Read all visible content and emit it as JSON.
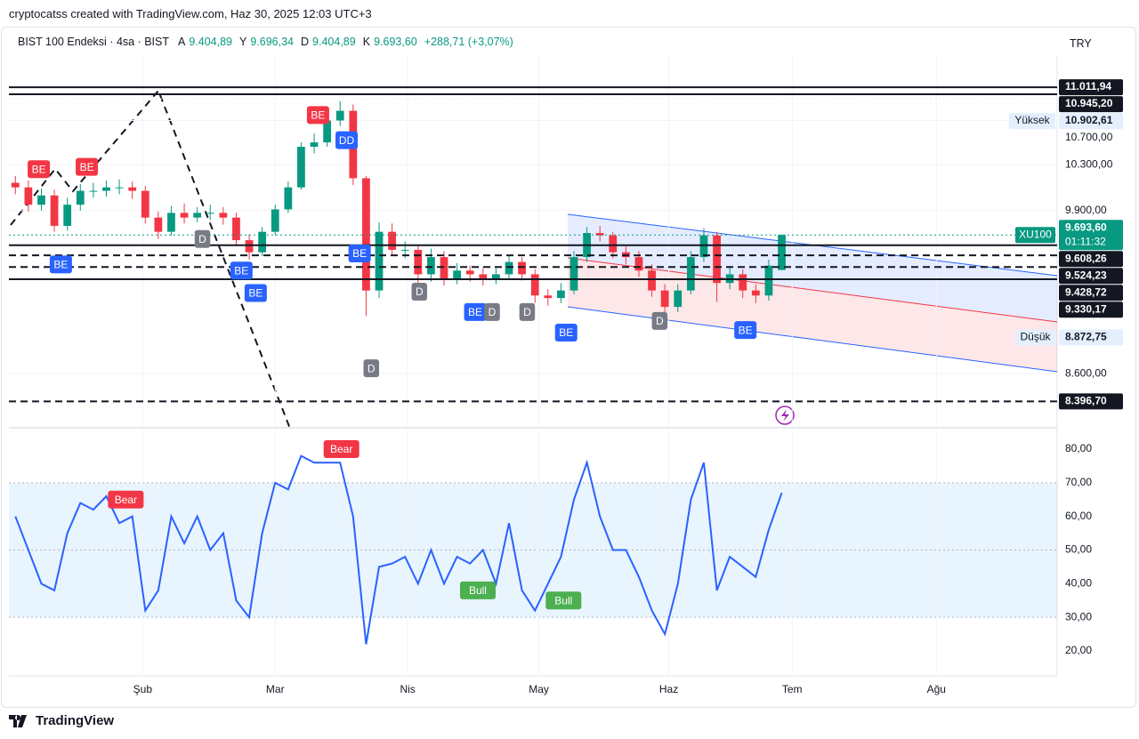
{
  "header": {
    "caption": "cryptocatss created with TradingView.com, Haz 30, 2025 12:03 UTC+3"
  },
  "legend": {
    "symbol": "BIST 100 Endeksi · 4sa · BIST",
    "ohlc": [
      {
        "key": "A",
        "value": "9.404,89"
      },
      {
        "key": "Y",
        "value": "9.696,34"
      },
      {
        "key": "D",
        "value": "9.404,89"
      },
      {
        "key": "K",
        "value": "9.693,60"
      }
    ],
    "change": "+288,71 (+3,07%)",
    "currency": "TRY"
  },
  "chart_data": [
    {
      "type": "candlestick",
      "log_scale": true,
      "grid": true,
      "xlim": [
        0,
        80.7
      ],
      "ylim": [
        8214,
        11321
      ],
      "up_color": "#089981",
      "down_color": "#f23645",
      "ohlc": {
        "open": [
          10140,
          10100,
          9950,
          10030,
          9770,
          9950,
          10070,
          10070,
          10100,
          10100,
          10070,
          9840,
          9720,
          9880,
          9840,
          9880,
          9880,
          9840,
          9650,
          9550,
          9720,
          9910,
          10100,
          10460,
          10500,
          10700,
          10790,
          10180,
          9240,
          9720,
          9570,
          9570,
          9370,
          9510,
          9330,
          9400,
          9370,
          9330,
          9370,
          9470,
          9370,
          9200,
          9180,
          9240,
          9510,
          9710,
          9690,
          9550,
          9510,
          9400,
          9240,
          9110,
          9240,
          9510,
          9690,
          9300,
          9370,
          9240,
          9200,
          9404.89
        ],
        "high": [
          10200,
          10160,
          10090,
          10080,
          10010,
          10130,
          10140,
          10160,
          10170,
          10150,
          10110,
          9890,
          9940,
          9960,
          9930,
          9950,
          9930,
          9880,
          9700,
          9760,
          9950,
          10150,
          10500,
          10580,
          10780,
          10880,
          10850,
          10200,
          9800,
          9790,
          9640,
          9610,
          9580,
          9560,
          9460,
          9440,
          9420,
          9420,
          9530,
          9510,
          9410,
          9250,
          9300,
          9560,
          9760,
          9770,
          9720,
          9600,
          9560,
          9450,
          9290,
          9290,
          9560,
          9750,
          9720,
          9430,
          9410,
          9290,
          9490,
          9696.34
        ],
        "low": [
          10040,
          9890,
          9900,
          9720,
          9730,
          9900,
          10010,
          10020,
          10040,
          10000,
          9790,
          9660,
          9690,
          9790,
          9800,
          9820,
          9780,
          9600,
          9490,
          9520,
          9690,
          9880,
          10080,
          10400,
          10460,
          10650,
          10120,
          9040,
          9180,
          9520,
          9500,
          9300,
          9310,
          9280,
          9290,
          9310,
          9280,
          9290,
          9330,
          9320,
          9140,
          9120,
          9140,
          9210,
          9470,
          9640,
          9500,
          9450,
          9350,
          9190,
          9060,
          9070,
          9210,
          9470,
          9150,
          9250,
          9180,
          9140,
          9160,
          9404.89
        ],
        "close": [
          10100,
          9950,
          10030,
          9770,
          9950,
          10070,
          10070,
          10100,
          10100,
          10070,
          9840,
          9720,
          9880,
          9840,
          9880,
          9880,
          9840,
          9650,
          9550,
          9720,
          9910,
          10100,
          10460,
          10500,
          10700,
          10790,
          10180,
          9240,
          9720,
          9570,
          9570,
          9370,
          9510,
          9330,
          9400,
          9370,
          9330,
          9370,
          9470,
          9370,
          9200,
          9180,
          9240,
          9510,
          9710,
          9690,
          9550,
          9510,
          9400,
          9240,
          9110,
          9240,
          9510,
          9690,
          9300,
          9370,
          9240,
          9200,
          9440,
          9693.6
        ]
      },
      "yticks": [
        {
          "value": 10700,
          "label": "10.700,00"
        },
        {
          "value": 10300,
          "label": "10.300,00"
        },
        {
          "value": 9900,
          "label": "9.900,00"
        },
        {
          "value": 8600,
          "label": "8.600,00"
        }
      ],
      "levels": [
        {
          "value": 11011.94,
          "label": "11.011,94",
          "line": "solid",
          "box": "#131722"
        },
        {
          "value": 10945.2,
          "label": "10.945,20",
          "line": "solid",
          "box": "#131722"
        },
        {
          "value": 10902.61,
          "label": "10.902,61",
          "tag": "Yüksek",
          "line": "dotted",
          "box": "#e3effd"
        },
        {
          "value": 9693.6,
          "label": "9.693,60",
          "sublabel": "01:11:32",
          "tag": "XU100",
          "line": "dotted",
          "box": "#089981"
        },
        {
          "value": 9608.26,
          "label": "9.608,26",
          "line": "solid",
          "box": "#131722"
        },
        {
          "value": 9524.23,
          "label": "9.524,23",
          "line": "dashed",
          "box": "#131722"
        },
        {
          "value": 9428.72,
          "label": "9.428,72",
          "line": "dashed",
          "box": "#131722"
        },
        {
          "value": 9330.17,
          "label": "9.330,17",
          "line": "solid",
          "box": "#131722"
        },
        {
          "value": 8872.75,
          "label": "8.872,75",
          "tag": "Düşük",
          "box": "#e3effd"
        },
        {
          "value": 8396.7,
          "label": "8.396,70",
          "line": "dashed",
          "box": "#131722"
        }
      ],
      "annotations": [
        {
          "text": "BE",
          "x": 2.3,
          "y": 10260,
          "color": "#f23645"
        },
        {
          "text": "BE",
          "x": 6.0,
          "y": 10280,
          "color": "#f23645"
        },
        {
          "text": "BE",
          "x": 23.8,
          "y": 10750,
          "color": "#f23645"
        },
        {
          "text": "DD",
          "x": 26.0,
          "y": 10520,
          "color": "#2962ff"
        },
        {
          "text": "BE",
          "x": 4.0,
          "y": 9450,
          "color": "#2962ff"
        },
        {
          "text": "D",
          "x": 14.9,
          "y": 9660,
          "color": "#787b86"
        },
        {
          "text": "BE",
          "x": 17.9,
          "y": 9400,
          "color": "#2962ff"
        },
        {
          "text": "BE",
          "x": 19.0,
          "y": 9220,
          "color": "#2962ff"
        },
        {
          "text": "BE",
          "x": 27.0,
          "y": 9540,
          "color": "#2962ff"
        },
        {
          "text": "D",
          "x": 27.9,
          "y": 8640,
          "color": "#787b86"
        },
        {
          "text": "D",
          "x": 31.6,
          "y": 9230,
          "color": "#787b86"
        },
        {
          "text": "BE",
          "x": 35.9,
          "y": 9070,
          "color": "#2962ff"
        },
        {
          "text": "D",
          "x": 37.2,
          "y": 9070,
          "color": "#787b86"
        },
        {
          "text": "D",
          "x": 39.9,
          "y": 9070,
          "color": "#787b86"
        },
        {
          "text": "BE",
          "x": 42.9,
          "y": 8910,
          "color": "#2962ff"
        },
        {
          "text": "D",
          "x": 50.1,
          "y": 9000,
          "color": "#787b86"
        },
        {
          "text": "BE",
          "x": 56.7,
          "y": 8930,
          "color": "#2962ff"
        }
      ]
    },
    {
      "type": "line",
      "xlim": [
        0,
        80.7
      ],
      "ylim": [
        12.6,
        85.3
      ],
      "color": "#2962ff",
      "band": [
        30,
        70
      ],
      "levels": [
        70,
        50,
        30
      ],
      "values": [
        60,
        50,
        40,
        38,
        55,
        64,
        62,
        66,
        58,
        60,
        32,
        38,
        60,
        52,
        60,
        50,
        55,
        35,
        30,
        55,
        70,
        68,
        78,
        76,
        76,
        76,
        60,
        22,
        45,
        46,
        48,
        40,
        50,
        40,
        48,
        46,
        50,
        40,
        58,
        38,
        32,
        40,
        48,
        65,
        76,
        60,
        50,
        50,
        42,
        32,
        25,
        40,
        65,
        76,
        38,
        48,
        45,
        42,
        56,
        67
      ],
      "yticks": [
        {
          "value": 80,
          "label": "80,00"
        },
        {
          "value": 70,
          "label": "70,00"
        },
        {
          "value": 60,
          "label": "60,00"
        },
        {
          "value": 50,
          "label": "50,00"
        },
        {
          "value": 40,
          "label": "40,00"
        },
        {
          "value": 30,
          "label": "30,00"
        },
        {
          "value": 20,
          "label": "20,00"
        }
      ],
      "xticks": [
        {
          "value": 10.3,
          "label": "Şub"
        },
        {
          "value": 20.5,
          "label": "Mar"
        },
        {
          "value": 30.7,
          "label": "Nis"
        },
        {
          "value": 40.8,
          "label": "May"
        },
        {
          "value": 50.8,
          "label": "Haz"
        },
        {
          "value": 60.3,
          "label": "Tem"
        },
        {
          "value": 71.4,
          "label": "Ağu"
        }
      ],
      "annotations": [
        {
          "text": "Bear",
          "x": 9.0,
          "y": 65,
          "color": "#f23645"
        },
        {
          "text": "Bear",
          "x": 25.6,
          "y": 80,
          "color": "#f23645"
        },
        {
          "text": "Bull",
          "x": 36.1,
          "y": 38,
          "color": "#4caf50"
        },
        {
          "text": "Bull",
          "x": 42.7,
          "y": 35,
          "color": "#4caf50"
        }
      ]
    }
  ],
  "footer": {
    "brand": "TradingView"
  }
}
